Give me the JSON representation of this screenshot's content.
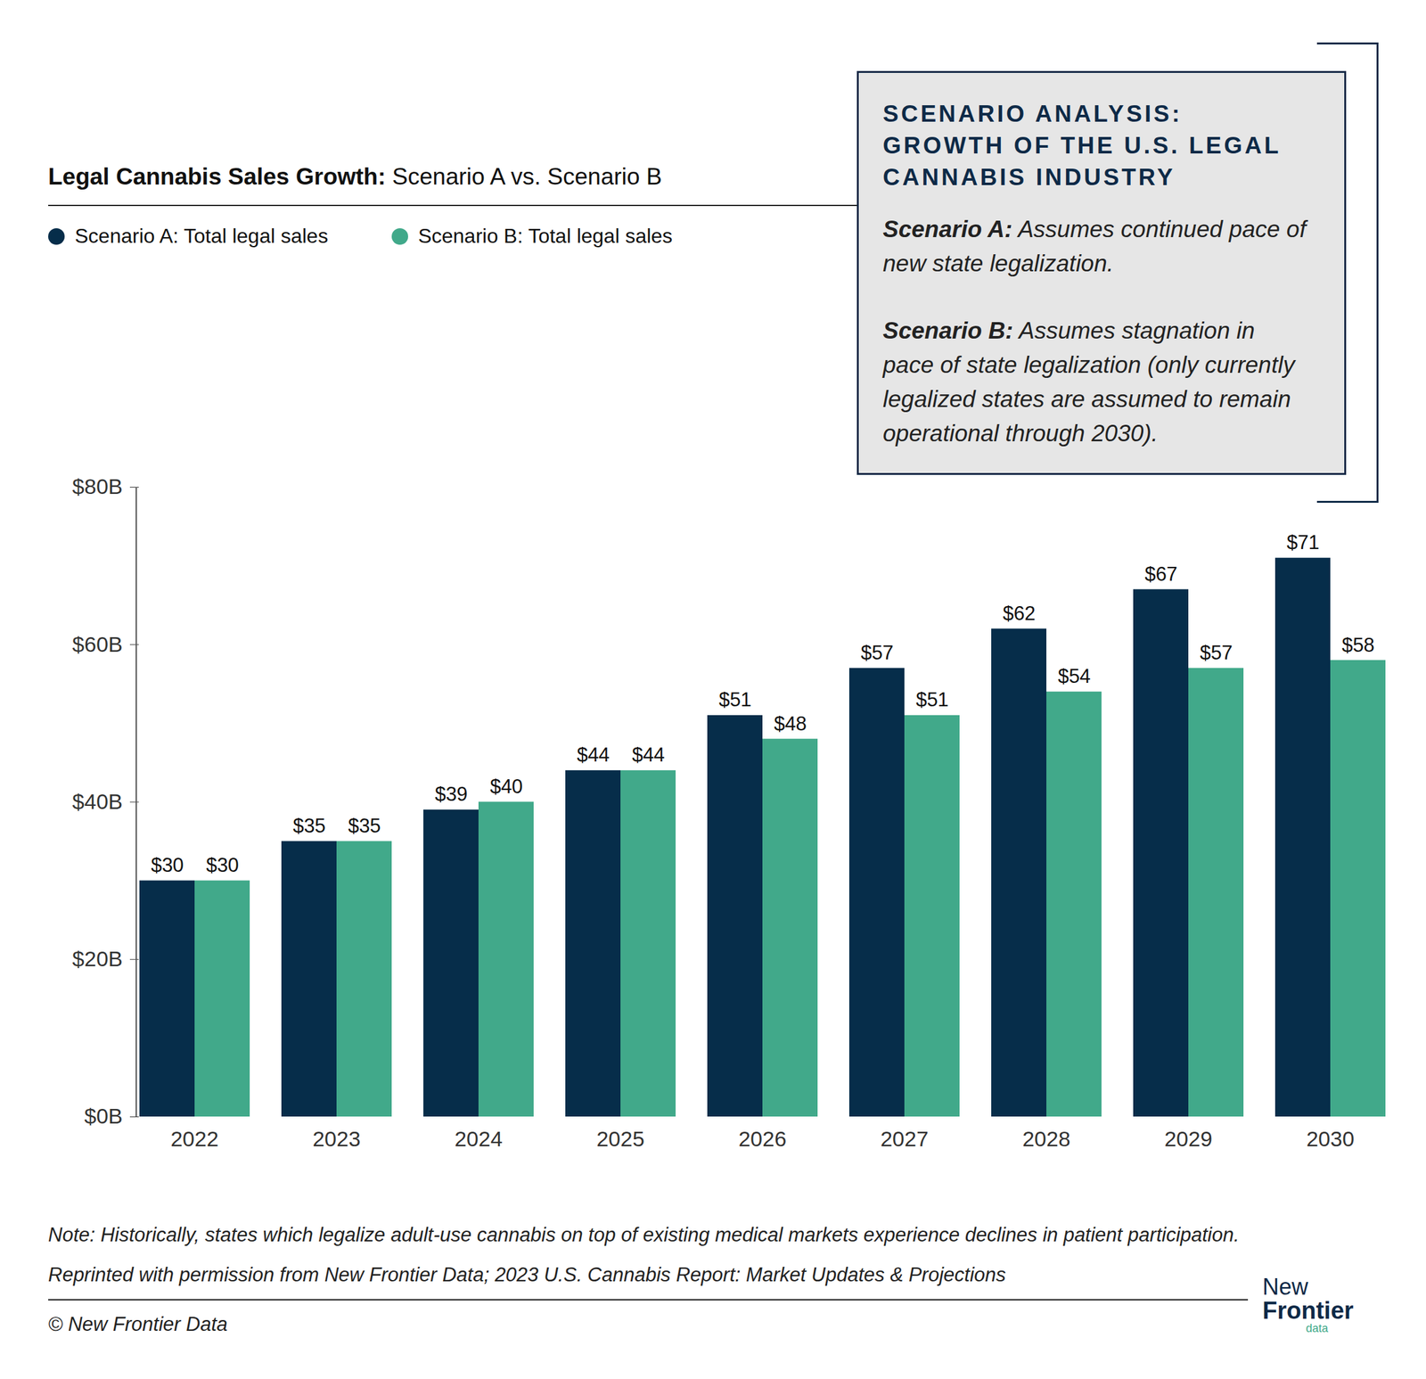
{
  "chart_data": {
    "type": "bar",
    "title": "Legal Cannabis Sales Growth:",
    "subtitle": "Scenario A vs. Scenario B",
    "categories": [
      "2022",
      "2023",
      "2024",
      "2025",
      "2026",
      "2027",
      "2028",
      "2029",
      "2030"
    ],
    "series": [
      {
        "name": "Scenario A: Total legal sales",
        "color": "#062d4a",
        "values": [
          30,
          35,
          39,
          44,
          51,
          57,
          62,
          67,
          71
        ],
        "value_labels": [
          "$30",
          "$35",
          "$39",
          "$44",
          "$51",
          "$57",
          "$62",
          "$67",
          "$71"
        ]
      },
      {
        "name": "Scenario B: Total legal sales",
        "color": "#41a98a",
        "values": [
          30,
          35,
          40,
          44,
          48,
          51,
          54,
          57,
          58
        ],
        "value_labels": [
          "$30",
          "$35",
          "$40",
          "$44",
          "$48",
          "$51",
          "$54",
          "$57",
          "$58"
        ]
      }
    ],
    "ylim": [
      0,
      80
    ],
    "yticks": [
      {
        "value": 0,
        "label": "$0B"
      },
      {
        "value": 20,
        "label": "$20B"
      },
      {
        "value": 40,
        "label": "$40B"
      },
      {
        "value": 60,
        "label": "$60B"
      },
      {
        "value": 80,
        "label": "$80B"
      }
    ],
    "grid": false,
    "data_labels": true,
    "legend": "top",
    "annotations": {
      "box": {
        "title": "SCENARIO ANALYSIS: GROWTH OF THE U.S. LEGAL CANNABIS INDUSTRY",
        "items": [
          {
            "label": "Scenario A:",
            "text": "Assumes continued pace of new state legalization."
          },
          {
            "label": "Scenario B:",
            "text": "Assumes stagnation in pace of state legalization (only currently legalized states are assumed to remain operational through 2030)."
          }
        ]
      },
      "notes": [
        "Note: Historically, states which legalize adult-use cannabis on top of existing medical markets experience declines in patient participation.",
        "Reprinted with permission from New Frontier Data; 2023 U.S. Cannabis Report: Market Updates & Projections"
      ],
      "copyright": "© New Frontier Data",
      "logo": [
        "New",
        "Frontier",
        "data"
      ]
    }
  }
}
